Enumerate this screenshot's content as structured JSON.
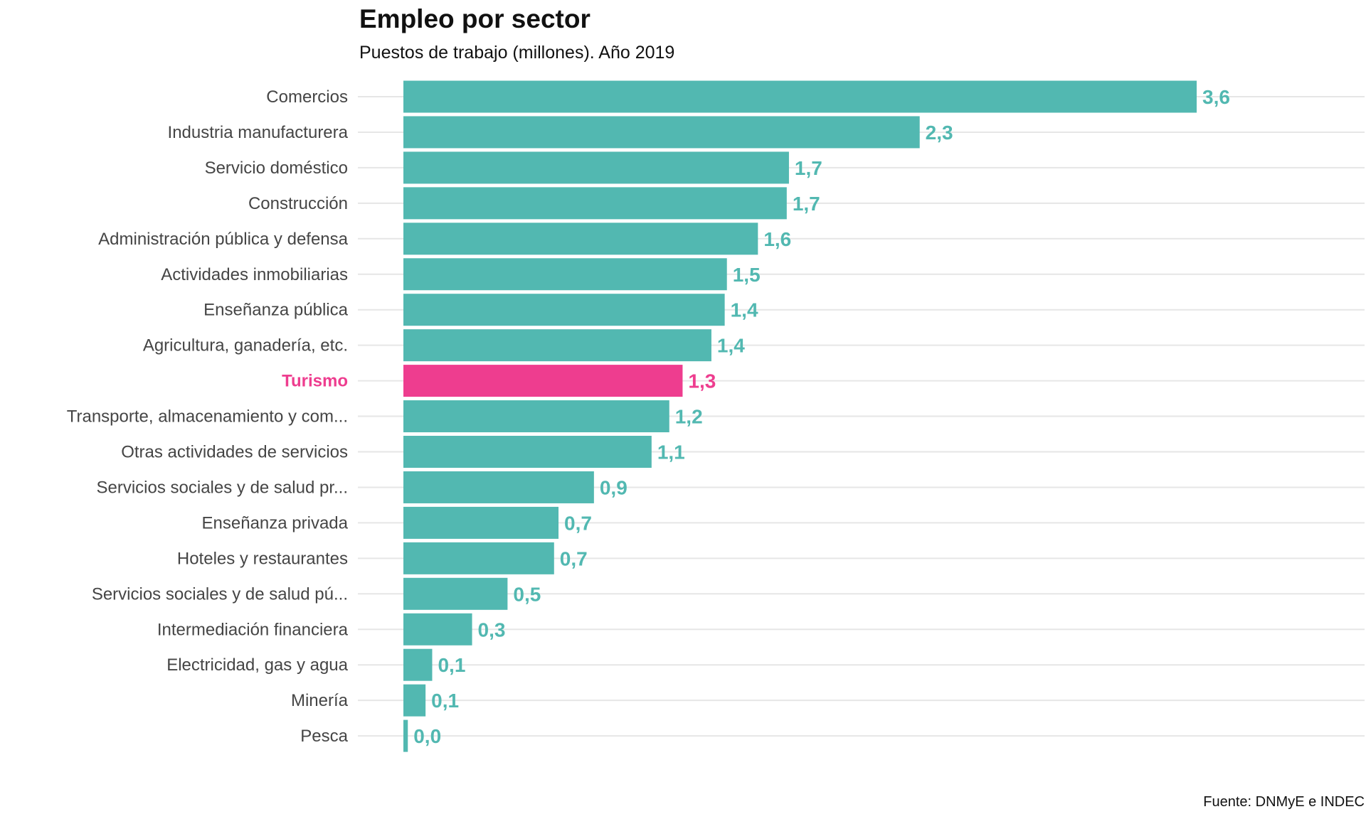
{
  "chart_data": {
    "type": "bar",
    "orientation": "horizontal",
    "title": "Empleo por sector",
    "subtitle": "Puestos de trabajo (millones). Año 2019",
    "caption": "Fuente: DNMyE e INDEC",
    "xlabel": "",
    "ylabel": "",
    "xlim": [
      0,
      4.3
    ],
    "grid": true,
    "colors": {
      "default": "#52b8b1",
      "highlight": "#ee3d8f",
      "label_default": "#454545"
    },
    "highlight_category": "Turismo",
    "categories": [
      "Comercios",
      "Industria manufacturera",
      "Servicio doméstico",
      "Construcción",
      "Administración pública y defensa",
      "Actividades inmobiliarias",
      "Enseñanza pública",
      "Agricultura, ganadería, etc.",
      "Turismo",
      "Transporte, almacenamiento y com...",
      "Otras actividades de servicios",
      "Servicios sociales y de salud pr...",
      "Enseñanza privada",
      "Hoteles y restaurantes",
      "Servicios sociales y de salud pú...",
      "Intermediación financiera",
      "Electricidad, gas y agua",
      "Minería",
      "Pesca"
    ],
    "values": [
      3.58,
      2.33,
      1.74,
      1.73,
      1.6,
      1.46,
      1.45,
      1.39,
      1.26,
      1.2,
      1.12,
      0.86,
      0.7,
      0.68,
      0.47,
      0.31,
      0.13,
      0.1,
      0.02
    ],
    "value_labels": [
      "3,6",
      "2,3",
      "1,7",
      "1,7",
      "1,6",
      "1,5",
      "1,4",
      "1,4",
      "1,3",
      "1,2",
      "1,1",
      "0,9",
      "0,7",
      "0,7",
      "0,5",
      "0,3",
      "0,1",
      "0,1",
      "0,0"
    ]
  }
}
